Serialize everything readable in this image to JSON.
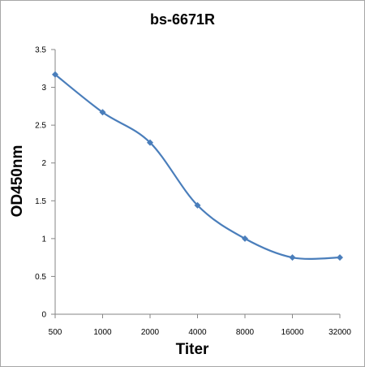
{
  "chart_data": {
    "type": "line",
    "title": "bs-6671R",
    "xlabel": "Titer",
    "ylabel": "OD450nm",
    "categories": [
      "500",
      "1000",
      "2000",
      "4000",
      "8000",
      "16000",
      "32000"
    ],
    "series": [
      {
        "values": [
          3.17,
          2.67,
          2.27,
          1.44,
          1.0,
          0.75,
          0.75
        ]
      }
    ],
    "ylim": [
      0,
      3.5
    ],
    "yticks": [
      "0",
      "0.5",
      "1",
      "1.5",
      "2",
      "2.5",
      "3",
      "3.5"
    ],
    "grid": false,
    "legend": "none",
    "line_color": "#4a7ebb",
    "marker": "diamond",
    "smooth": true
  }
}
